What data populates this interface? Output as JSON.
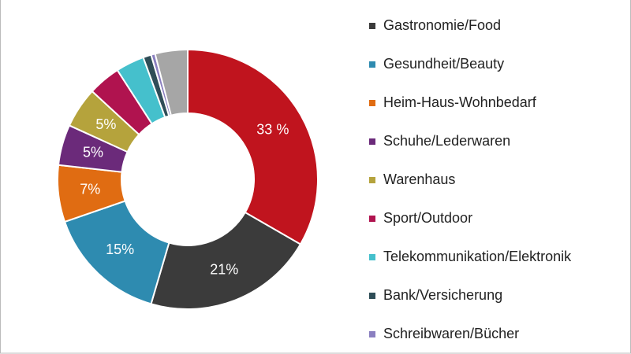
{
  "chart_data": {
    "type": "donut",
    "categories": [
      null,
      "Gastronomie/Food",
      "Gesundheit/Beauty",
      "Heim-Haus-Wohnbedarf",
      "Schuhe/Lederwaren",
      "Warenhaus",
      "Sport/Outdoor",
      "Telekommunikation/Elektronik",
      "Bank/Versicherung",
      "Schreibwaren/Bücher",
      null
    ],
    "values": [
      33,
      21,
      15,
      7,
      5,
      5,
      4,
      3.5,
      1,
      0.5,
      4
    ],
    "value_labels": [
      "33 %",
      "21%",
      "15%",
      "7%",
      "5%",
      "5%",
      null,
      null,
      null,
      null,
      null
    ],
    "colors": [
      "#c0141e",
      "#3b3b3b",
      "#2e8bb0",
      "#e06c12",
      "#6b2a7a",
      "#b5a33c",
      "#b0134f",
      "#45c0cc",
      "#2f4d57",
      "#8a7fc0",
      "#a6a6a6"
    ]
  }
}
